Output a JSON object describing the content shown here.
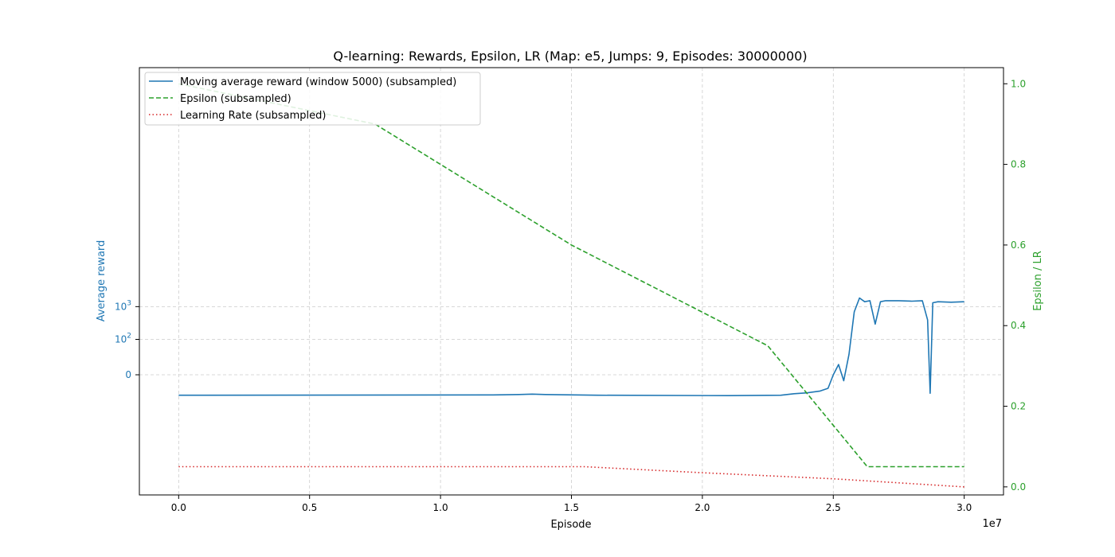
{
  "chart_data": {
    "type": "line",
    "title": "Q-learning: Rewards, Epsilon, LR (Map: e5, Jumps: 9, Episodes: 30000000)",
    "xlabel": "Episode",
    "x_offset_label": "1e7",
    "xlim": [
      -0.15,
      3.15
    ],
    "x_ticks": [
      0.0,
      0.5,
      1.0,
      1.5,
      2.0,
      2.5,
      3.0
    ],
    "x_tick_labels": [
      "0.0",
      "0.5",
      "1.0",
      "1.5",
      "2.0",
      "2.5",
      "3.0"
    ],
    "ylabel_left": "Average reward",
    "ylabel_right": "Epsilon / LR",
    "y_left_scale": "symlog",
    "y_left_tick_labels": [
      {
        "value": 0,
        "base": "0",
        "exp": ""
      },
      {
        "value": 100,
        "base": "10",
        "exp": "2"
      },
      {
        "value": 1000,
        "base": "10",
        "exp": "3"
      }
    ],
    "ylim_right": [
      -0.02,
      1.04
    ],
    "y_right_ticks": [
      0.0,
      0.2,
      0.4,
      0.6,
      0.8,
      1.0
    ],
    "y_right_tick_labels": [
      "0.0",
      "0.2",
      "0.4",
      "0.6",
      "0.8",
      "1.0"
    ],
    "grid": true,
    "legend_position": "top-left",
    "colors": {
      "reward": "#1f77b4",
      "epsilon": "#2ca02c",
      "lr": "#d62728",
      "axis": "#000000",
      "grid": "#cccccc"
    },
    "series": [
      {
        "name": "Moving average reward (window 5000) (subsampled)",
        "axis": "left",
        "style": "solid",
        "x": [
          0.0,
          1.2,
          1.3,
          1.35,
          1.4,
          1.6,
          2.1,
          2.3,
          2.35,
          2.4,
          2.45,
          2.48,
          2.5,
          2.52,
          2.54,
          2.56,
          2.58,
          2.6,
          2.62,
          2.64,
          2.66,
          2.68,
          2.7,
          2.75,
          2.8,
          2.84,
          2.86,
          2.87,
          2.88,
          2.9,
          2.95,
          3.0
        ],
        "y": [
          -30,
          -29,
          -28,
          -27,
          -28,
          -30,
          -31,
          -30,
          -26,
          -24,
          -20,
          -15,
          0,
          10,
          -5,
          30,
          700,
          1800,
          1400,
          1500,
          300,
          1400,
          1500,
          1500,
          1450,
          1500,
          400,
          -25,
          1300,
          1400,
          1350,
          1400
        ]
      },
      {
        "name": "Epsilon (subsampled)",
        "axis": "right",
        "style": "dashed",
        "x": [
          0.0,
          0.75,
          1.5,
          2.25,
          2.63,
          3.0
        ],
        "y": [
          1.0,
          0.9,
          0.6,
          0.35,
          0.05,
          0.05
        ]
      },
      {
        "name": "Learning Rate (subsampled)",
        "axis": "right",
        "style": "dotted",
        "x": [
          0.0,
          1.55,
          2.0,
          2.5,
          3.0
        ],
        "y": [
          0.05,
          0.05,
          0.035,
          0.02,
          0.0
        ]
      }
    ]
  }
}
